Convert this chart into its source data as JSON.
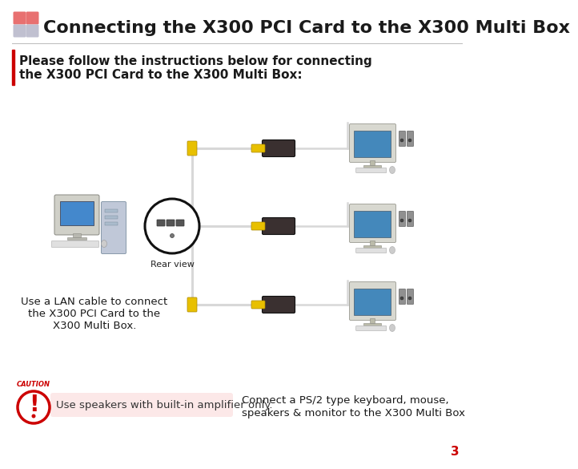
{
  "title": "Connecting the X300 PCI Card to the X300 Multi Box",
  "title_fontsize": 16,
  "title_color": "#1a1a1a",
  "bg_color": "#ffffff",
  "sq_colors": [
    "#e87070",
    "#e87070",
    "#c0c0d0",
    "#c0c0d0"
  ],
  "intro_text_line1": "Please follow the instructions below for connecting",
  "intro_text_line2": "the X300 PCI Card to the X300 Multi Box:",
  "intro_fontsize": 11,
  "left_bar_color": "#cc0000",
  "annotation_lan": "Use a LAN cable to connect\nthe X300 PCI Card to the\nX300 Multi Box.",
  "annotation_lan_fontsize": 9.5,
  "rear_view_text": "Rear view",
  "rear_view_fontsize": 8,
  "caution_text": "Use speakers with built-in amplifier only.",
  "caution_fontsize": 9.5,
  "caution_bg": "#fce8e8",
  "connect_text_line1": "Connect a PS/2 type keyboard, mouse,",
  "connect_text_line2": "speakers & monitor to the X300 Multi Box",
  "connect_fontsize": 9.5,
  "page_number": "3",
  "page_num_fontsize": 11,
  "page_num_color": "#cc0000",
  "cable_color": "#d8d8d8",
  "kvm_color": "#3a3030",
  "connector_color": "#e8c000",
  "monitor_frame_color": "#d0d0d0",
  "screen_color": "#4488bb",
  "speaker_color": "#909090",
  "pc_tower_color": "#c0c8d8",
  "pc_monitor_color": "#d0d0d0"
}
